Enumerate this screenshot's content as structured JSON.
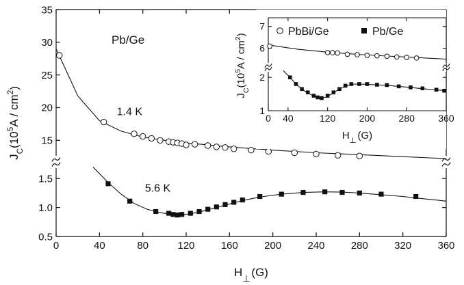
{
  "chart_data": [
    {
      "type": "scatter",
      "role": "main",
      "title": "",
      "annotation": "Pb/Ge",
      "xlabel_main": "H",
      "xlabel_sub": "⊥",
      "xlabel_unit": "(G)",
      "ylabel": "J",
      "ylabel_sub": "C",
      "ylabel_unit": "(10",
      "ylabel_exp": "5",
      "ylabel_rest": "A / cm",
      "ylabel_exp2": "2",
      "ylabel_close": ")",
      "xlim": [
        0,
        360
      ],
      "xticks": [
        "0",
        "40",
        "80",
        "120",
        "160",
        "200",
        "240",
        "280",
        "320",
        "360"
      ],
      "upper_ylim": [
        12,
        35
      ],
      "upper_yticks": [
        "15",
        "20",
        "25",
        "30",
        "35"
      ],
      "lower_ylim": [
        0.5,
        1.75
      ],
      "lower_yticks": [
        "0.5",
        "1.0",
        "1.5"
      ],
      "broken_axis": true,
      "grid": false,
      "series": [
        {
          "label": "1.4 K",
          "marker": "open-circle",
          "panel": "upper",
          "x": [
            3,
            44,
            72,
            80,
            88,
            96,
            104,
            108,
            112,
            116,
            120,
            128,
            140,
            148,
            156,
            164,
            180,
            196,
            220,
            240,
            260,
            280
          ],
          "y": [
            28.0,
            17.8,
            16.0,
            15.6,
            15.3,
            15.0,
            14.8,
            14.7,
            14.6,
            14.5,
            14.3,
            14.4,
            14.2,
            14.0,
            13.9,
            13.7,
            13.5,
            13.3,
            13.1,
            12.9,
            12.7,
            12.6
          ]
        },
        {
          "label": "5.6 K",
          "marker": "filled-square",
          "panel": "lower",
          "x": [
            48,
            68,
            92,
            104,
            108,
            112,
            116,
            124,
            132,
            140,
            148,
            156,
            164,
            172,
            188,
            208,
            228,
            248,
            264,
            280,
            300,
            332
          ],
          "y": [
            1.41,
            1.11,
            0.93,
            0.9,
            0.88,
            0.87,
            0.88,
            0.9,
            0.93,
            0.97,
            1.01,
            1.05,
            1.09,
            1.13,
            1.19,
            1.23,
            1.26,
            1.27,
            1.26,
            1.25,
            1.23,
            1.19
          ]
        }
      ],
      "fit_curves": {
        "upper": {
          "x": [
            0,
            20,
            40,
            60,
            80,
            100,
            120,
            160,
            200,
            240,
            280,
            320,
            360
          ],
          "y": [
            29.0,
            21.8,
            18.0,
            16.4,
            15.5,
            15.0,
            14.6,
            14.0,
            13.5,
            13.1,
            12.8,
            12.5,
            12.2
          ]
        },
        "lower": {
          "x": [
            34,
            48,
            60,
            72,
            84,
            96,
            108,
            116,
            124,
            136,
            148,
            160,
            172,
            188,
            208,
            228,
            248,
            264,
            280,
            300,
            320,
            340,
            360
          ],
          "y": [
            1.7,
            1.43,
            1.23,
            1.07,
            0.97,
            0.91,
            0.88,
            0.875,
            0.89,
            0.94,
            1.0,
            1.06,
            1.12,
            1.18,
            1.23,
            1.26,
            1.27,
            1.265,
            1.25,
            1.22,
            1.19,
            1.15,
            1.11
          ]
        }
      }
    },
    {
      "type": "scatter",
      "role": "inset",
      "xlabel_main": "H",
      "xlabel_sub": "⊥",
      "xlabel_unit": "(G)",
      "ylabel": "J",
      "ylabel_sub": "C",
      "ylabel_unit": "(10",
      "ylabel_exp": "5",
      "ylabel_rest": "A / cm",
      "ylabel_exp2": "2",
      "ylabel_close": ")",
      "xlim": [
        0,
        360
      ],
      "xticks": [
        "0",
        "40",
        "120",
        "200",
        "280",
        "360"
      ],
      "upper_ylim": [
        5.2,
        7.4
      ],
      "upper_yticks": [
        "6",
        "7"
      ],
      "lower_ylim": [
        1.0,
        2.25
      ],
      "lower_yticks": [
        "1",
        "2"
      ],
      "broken_axis": true,
      "legend": {
        "position": "top",
        "entries": [
          "PbBi/Ge",
          "Pb/Ge"
        ]
      },
      "series": [
        {
          "label": "PbBi/Ge",
          "marker": "open-circle",
          "panel": "upper",
          "x": [
            3,
            120,
            130,
            140,
            160,
            180,
            200,
            220,
            240,
            260,
            280,
            300
          ],
          "y": [
            6.1,
            5.8,
            5.79,
            5.78,
            5.72,
            5.7,
            5.67,
            5.65,
            5.63,
            5.6,
            5.58,
            5.55
          ]
        },
        {
          "label": "Pb/Ge",
          "marker": "filled-square",
          "panel": "lower",
          "x": [
            44,
            56,
            68,
            80,
            92,
            100,
            108,
            120,
            132,
            144,
            156,
            168,
            184,
            200,
            220,
            240,
            264,
            288,
            312,
            340,
            356
          ],
          "y": [
            2.0,
            1.8,
            1.65,
            1.55,
            1.45,
            1.4,
            1.38,
            1.45,
            1.55,
            1.65,
            1.75,
            1.8,
            1.8,
            1.8,
            1.78,
            1.77,
            1.73,
            1.7,
            1.67,
            1.63,
            1.6
          ]
        }
      ],
      "fit_curves": {
        "upper": {
          "x": [
            0,
            60,
            120,
            180,
            240,
            300,
            360
          ],
          "y": [
            6.15,
            5.95,
            5.82,
            5.72,
            5.64,
            5.57,
            5.5
          ]
        },
        "lower": {
          "x": [
            30,
            44,
            56,
            68,
            80,
            92,
            104,
            116,
            128,
            144,
            160,
            176,
            200,
            240,
            280,
            320,
            360
          ],
          "y": [
            2.2,
            2.0,
            1.8,
            1.65,
            1.53,
            1.44,
            1.39,
            1.4,
            1.5,
            1.65,
            1.76,
            1.8,
            1.79,
            1.76,
            1.71,
            1.65,
            1.6
          ]
        }
      }
    }
  ]
}
